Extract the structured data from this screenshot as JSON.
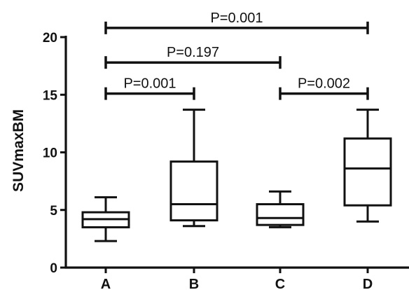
{
  "chart_data": {
    "type": "box",
    "ylabel": "SUVmaxBM",
    "xlabel": "",
    "title": "",
    "ylim": [
      0,
      20
    ],
    "yticks": [
      0,
      5,
      10,
      15,
      20
    ],
    "categories": [
      "A",
      "B",
      "C",
      "D"
    ],
    "boxes": [
      {
        "category": "A",
        "min": 2.3,
        "q1": 3.5,
        "median": 4.2,
        "q3": 4.8,
        "max": 6.1
      },
      {
        "category": "B",
        "min": 3.6,
        "q1": 4.1,
        "median": 5.5,
        "q3": 9.2,
        "max": 13.7
      },
      {
        "category": "C",
        "min": 3.5,
        "q1": 3.7,
        "median": 4.3,
        "q3": 5.5,
        "max": 6.6
      },
      {
        "category": "D",
        "min": 4.0,
        "q1": 5.4,
        "median": 8.6,
        "q3": 11.2,
        "max": 13.7
      }
    ],
    "comparisons": [
      {
        "from": "A",
        "to": "D",
        "label": "P=0.001",
        "y": 20.8
      },
      {
        "from": "A",
        "to": "C",
        "label": "P=0.197",
        "y": 17.8
      },
      {
        "from": "A",
        "to": "B",
        "label": "P=0.001",
        "y": 15.1
      },
      {
        "from": "C",
        "to": "D",
        "label": "P=0.002",
        "y": 15.1
      }
    ]
  }
}
